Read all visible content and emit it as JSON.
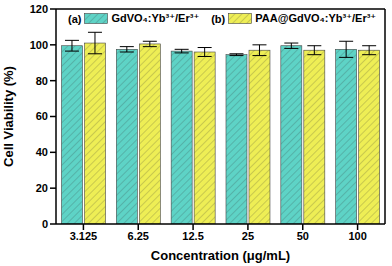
{
  "chart_data": {
    "type": "bar",
    "x_label": "Concentration (μg/mL)",
    "y_label": "Cell Viability (%)",
    "annotations": [
      "(a)",
      "(b)"
    ],
    "categories": [
      "3.125",
      "6.25",
      "12.5",
      "25",
      "50",
      "100"
    ],
    "series": [
      {
        "name": "GdVO₄:Yb³⁺/Er³⁺",
        "color": "#5ed3c6",
        "values": [
          99.5,
          97.5,
          96.5,
          94.5,
          99.5,
          97.5
        ],
        "error": [
          3,
          1.5,
          1,
          0.5,
          1.5,
          4.5
        ]
      },
      {
        "name": "PAA@GdVO₄:Yb³⁺/Er³⁺",
        "color": "#eeee55",
        "values": [
          101,
          100.5,
          96,
          97,
          97,
          97
        ],
        "error": [
          6,
          1.5,
          2.5,
          3,
          2.5,
          2.5
        ]
      }
    ],
    "ylim": [
      0,
      120
    ],
    "yticks": [
      0,
      20,
      40,
      60,
      80,
      100,
      120
    ],
    "grid": false,
    "legend": "top"
  }
}
